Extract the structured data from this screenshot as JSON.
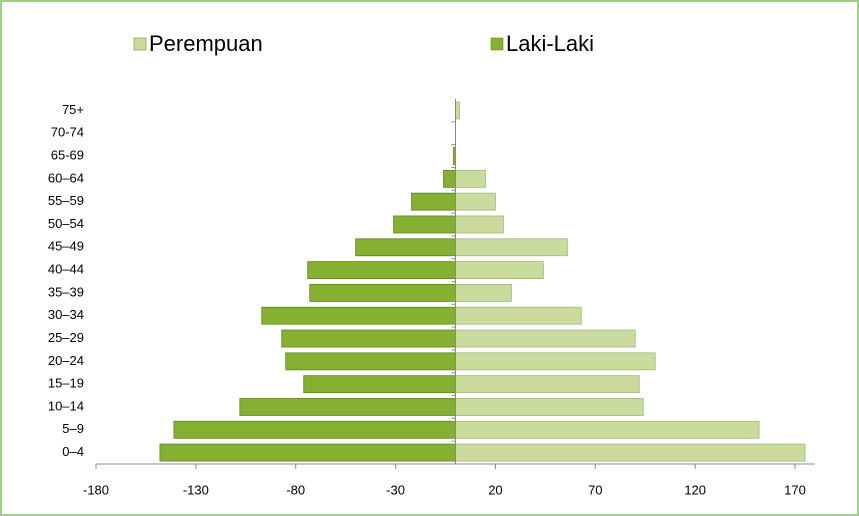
{
  "chart_data": {
    "type": "bar",
    "orientation": "horizontal",
    "stacked": true,
    "categories": [
      "0–4",
      "5–9",
      "10–14",
      "15–19",
      "20–24",
      "25–29",
      "30–34",
      "35–39",
      "40–44",
      "45–49",
      "50–54",
      "55–59",
      "60–64",
      "65-69",
      "70-74",
      "75+"
    ],
    "series": [
      {
        "name": "Perempuan",
        "color": "#c9dc9e",
        "values": [
          175,
          152,
          94,
          92,
          100,
          90,
          63,
          28,
          44,
          56,
          24,
          20,
          15,
          0,
          0,
          2
        ]
      },
      {
        "name": "Laki-Laki",
        "color": "#86b032",
        "values": [
          -148,
          -141,
          -108,
          -76,
          -85,
          -87,
          -97,
          -73,
          -74,
          -50,
          -31,
          -22,
          -6,
          -1,
          0,
          0
        ]
      }
    ],
    "xlim": [
      -180,
      180
    ],
    "xticks": [
      -180,
      -130,
      -80,
      -30,
      20,
      70,
      120,
      170
    ]
  }
}
